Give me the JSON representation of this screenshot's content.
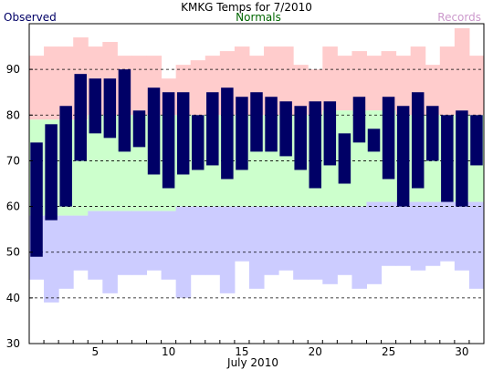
{
  "chart_data": {
    "type": "bar",
    "title": "KMKG Temps for 7/2010",
    "xlabel": "July 2010",
    "ylabel": "",
    "legend": {
      "observed": "Observed",
      "normals": "Normals",
      "records": "Records"
    },
    "ylim": [
      30,
      100
    ],
    "yticks": [
      30,
      40,
      50,
      60,
      70,
      80,
      90
    ],
    "xticks": [
      5,
      10,
      15,
      20,
      25,
      30
    ],
    "grid": "horizontal dashed at 40-90",
    "colors": {
      "observed": "#000066",
      "normals": "#ccffcc",
      "records_high": "#ffcccc",
      "records_low": "#ccccff",
      "observed_label": "#000066",
      "normals_label": "#006600",
      "records_label": "#cc99cc"
    },
    "days": [
      1,
      2,
      3,
      4,
      5,
      6,
      7,
      8,
      9,
      10,
      11,
      12,
      13,
      14,
      15,
      16,
      17,
      18,
      19,
      20,
      21,
      22,
      23,
      24,
      25,
      26,
      27,
      28,
      29,
      30,
      31
    ],
    "observed_high": [
      74,
      78,
      82,
      89,
      88,
      88,
      90,
      81,
      86,
      85,
      85,
      80,
      85,
      86,
      84,
      85,
      84,
      83,
      82,
      83,
      83,
      76,
      84,
      77,
      84,
      82,
      85,
      82,
      80,
      81,
      80
    ],
    "observed_low": [
      49,
      57,
      60,
      70,
      76,
      75,
      72,
      73,
      67,
      64,
      67,
      68,
      69,
      66,
      68,
      72,
      72,
      71,
      68,
      64,
      69,
      65,
      74,
      72,
      66,
      60,
      64,
      70,
      61,
      60,
      69
    ],
    "normal_high": [
      79,
      79,
      79,
      79,
      80,
      80,
      80,
      80,
      80,
      80,
      80,
      80,
      80,
      80,
      80,
      80,
      80,
      80,
      80,
      80,
      81,
      81,
      81,
      81,
      81,
      80,
      80,
      80,
      80,
      80,
      80
    ],
    "normal_low": [
      58,
      58,
      58,
      58,
      59,
      59,
      59,
      59,
      59,
      59,
      60,
      60,
      60,
      60,
      60,
      60,
      60,
      60,
      60,
      60,
      60,
      60,
      60,
      61,
      61,
      61,
      61,
      61,
      61,
      61,
      61
    ],
    "record_high": [
      93,
      95,
      95,
      97,
      95,
      96,
      93,
      93,
      93,
      88,
      91,
      92,
      93,
      94,
      95,
      93,
      95,
      95,
      91,
      90,
      95,
      93,
      94,
      93,
      94,
      93,
      95,
      91,
      95,
      99,
      93
    ],
    "record_low": [
      44,
      39,
      42,
      46,
      44,
      41,
      45,
      45,
      46,
      44,
      40,
      45,
      45,
      41,
      48,
      42,
      45,
      46,
      44,
      44,
      43,
      45,
      42,
      43,
      47,
      47,
      46,
      47,
      48,
      46,
      42
    ]
  }
}
